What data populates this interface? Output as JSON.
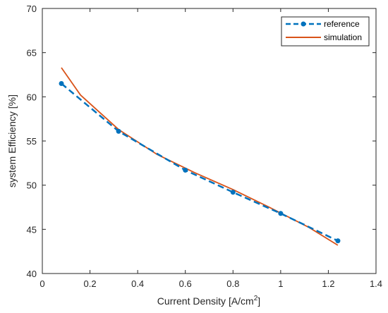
{
  "chart_data": {
    "type": "line",
    "title": "",
    "xlabel": "Current Density [A/cm",
    "xlabel_sup": "2",
    "xlabel_suffix": "]",
    "ylabel": "system Efficiency [%]",
    "xlim": [
      0,
      1.4
    ],
    "ylim": [
      40,
      70
    ],
    "xticks": [
      "0",
      "0.2",
      "0.4",
      "0.6",
      "0.8",
      "1",
      "1.2",
      "1.4"
    ],
    "yticks": [
      "40",
      "45",
      "50",
      "55",
      "60",
      "65",
      "70"
    ],
    "grid": false,
    "legend_position": "top-right",
    "series": [
      {
        "name": "reference",
        "style": "dashed-marker",
        "color": "#0072BD",
        "x": [
          0.08,
          0.32,
          0.6,
          0.8,
          1.0,
          1.24
        ],
        "y": [
          61.5,
          56.1,
          51.7,
          49.2,
          46.8,
          43.7
        ]
      },
      {
        "name": "simulation",
        "style": "solid",
        "color": "#D95319",
        "x": [
          0.08,
          0.16,
          0.32,
          0.48,
          0.64,
          0.8,
          0.96,
          1.12,
          1.24
        ],
        "y": [
          63.3,
          60.2,
          56.3,
          53.5,
          51.4,
          49.5,
          47.4,
          45.2,
          43.2
        ]
      }
    ]
  }
}
